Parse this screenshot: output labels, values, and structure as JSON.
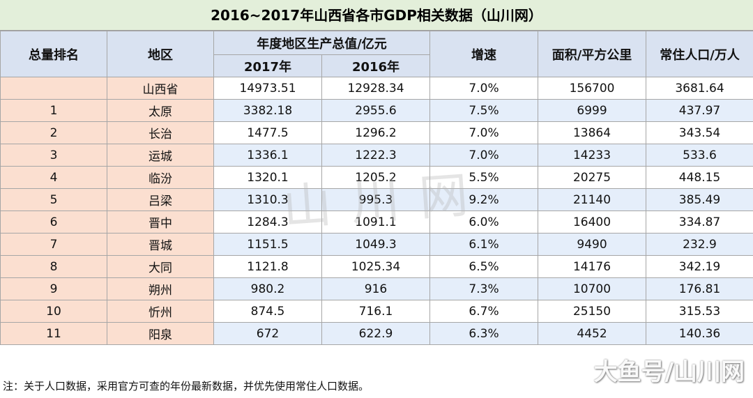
{
  "title": "2016~2017年山西省各市GDP相关数据（山川网）",
  "headers": {
    "rank": "总量排名",
    "region": "地区",
    "gdp_group": "年度地区生产总值/亿元",
    "y2017": "2017年",
    "y2016": "2016年",
    "growth": "增速",
    "area": "面积/平方公里",
    "population": "常住人口/万人"
  },
  "rows": [
    {
      "rank": "",
      "region": "山西省",
      "y2017": "14973.51",
      "y2016": "12928.34",
      "growth": "7.0%",
      "area": "156700",
      "population": "3681.64"
    },
    {
      "rank": "1",
      "region": "太原",
      "y2017": "3382.18",
      "y2016": "2955.6",
      "growth": "7.5%",
      "area": "6999",
      "population": "437.97"
    },
    {
      "rank": "2",
      "region": "长治",
      "y2017": "1477.5",
      "y2016": "1296.2",
      "growth": "7.0%",
      "area": "13864",
      "population": "343.54"
    },
    {
      "rank": "3",
      "region": "运城",
      "y2017": "1336.1",
      "y2016": "1222.3",
      "growth": "7.0%",
      "area": "14233",
      "population": "533.6"
    },
    {
      "rank": "4",
      "region": "临汾",
      "y2017": "1320.1",
      "y2016": "1205.2",
      "growth": "5.5%",
      "area": "20275",
      "population": "448.15"
    },
    {
      "rank": "5",
      "region": "吕梁",
      "y2017": "1310.3",
      "y2016": "995.3",
      "growth": "9.2%",
      "area": "21140",
      "population": "385.49"
    },
    {
      "rank": "6",
      "region": "晋中",
      "y2017": "1284.3",
      "y2016": "1091.1",
      "growth": "6.0%",
      "area": "16400",
      "population": "334.87"
    },
    {
      "rank": "7",
      "region": "晋城",
      "y2017": "1151.5",
      "y2016": "1049.3",
      "growth": "6.1%",
      "area": "9490",
      "population": "232.9"
    },
    {
      "rank": "8",
      "region": "大同",
      "y2017": "1121.8",
      "y2016": "1025.34",
      "growth": "6.5%",
      "area": "14176",
      "population": "342.19"
    },
    {
      "rank": "9",
      "region": "朔州",
      "y2017": "980.2",
      "y2016": "916",
      "growth": "7.3%",
      "area": "10700",
      "population": "176.81"
    },
    {
      "rank": "10",
      "region": "忻州",
      "y2017": "874.5",
      "y2016": "716.1",
      "growth": "6.7%",
      "area": "25150",
      "population": "315.53"
    },
    {
      "rank": "11",
      "region": "阳泉",
      "y2017": "672",
      "y2016": "622.9",
      "growth": "6.3%",
      "area": "4452",
      "population": "140.36"
    }
  ],
  "watermark": "山川网",
  "note": "注：关于人口数据，采用官方可查的年份最新数据，并优先使用常住人口数据。",
  "brand": "大鱼号/山川网"
}
